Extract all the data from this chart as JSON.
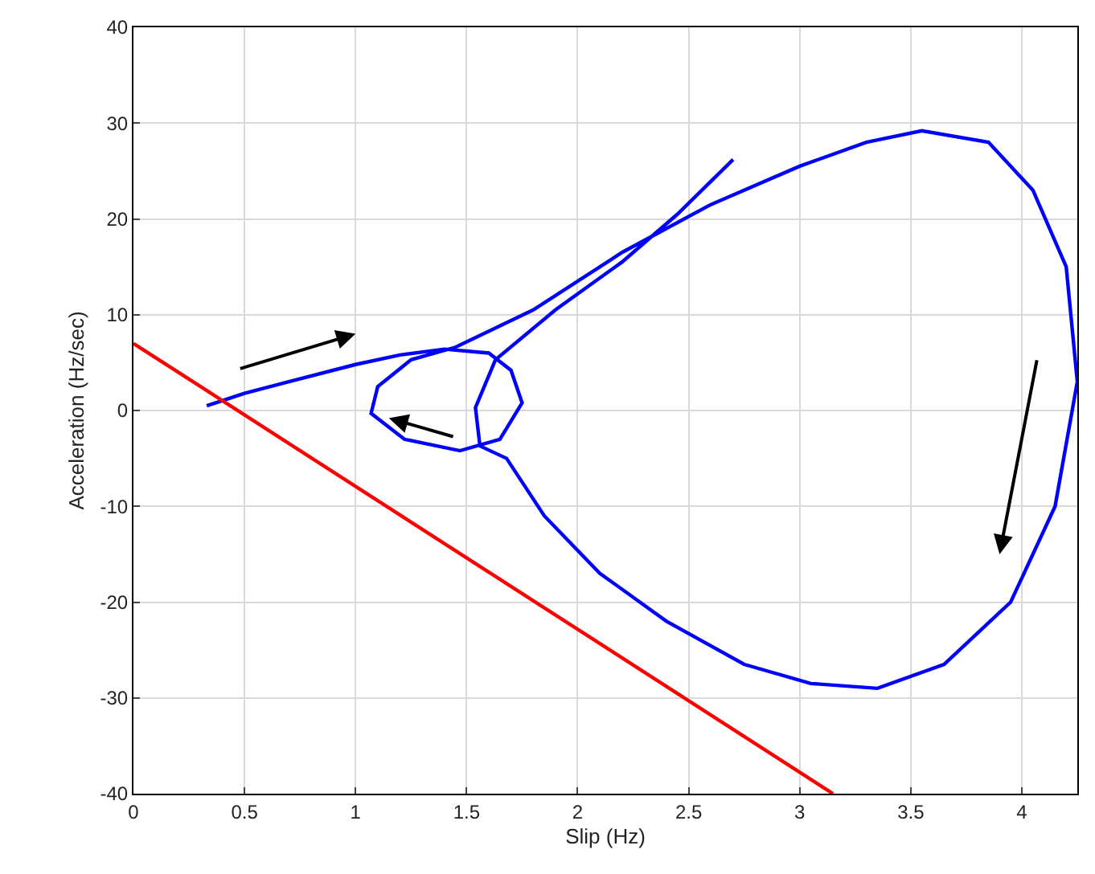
{
  "chart_data": {
    "type": "line",
    "xlabel": "Slip (Hz)",
    "ylabel": "Acceleration (Hz/sec)",
    "xlim": [
      0,
      4.25
    ],
    "ylim": [
      -40,
      40
    ],
    "xticks": [
      0,
      0.5,
      1,
      1.5,
      2,
      2.5,
      3,
      3.5,
      4
    ],
    "yticks": [
      -40,
      -30,
      -20,
      -10,
      0,
      10,
      20,
      30,
      40
    ],
    "grid": true,
    "marker": "none",
    "line_style": "solid",
    "series": [
      {
        "color": "#0000ff",
        "x": [
          0.33,
          0.5,
          0.7,
          1.0,
          1.2,
          1.4,
          1.6,
          1.7,
          1.75,
          1.65,
          1.47,
          1.22,
          1.07,
          1.1,
          1.25,
          1.45,
          1.8,
          2.2,
          2.6,
          3.0,
          3.3,
          3.55,
          3.85,
          4.05,
          4.2,
          4.25,
          4.15,
          3.95,
          3.65,
          3.35,
          3.05,
          2.75,
          2.4,
          2.1,
          1.85,
          1.68,
          1.56,
          1.54,
          1.63,
          1.9,
          2.2,
          2.45,
          2.7
        ],
        "values": [
          0.5,
          1.8,
          3.0,
          4.8,
          5.8,
          6.4,
          6.0,
          4.2,
          0.8,
          -3.0,
          -4.2,
          -3.0,
          -0.3,
          2.5,
          5.3,
          6.6,
          10.5,
          16.5,
          21.5,
          25.5,
          28.0,
          29.2,
          28.0,
          23.0,
          15.0,
          3.0,
          -10.0,
          -20.0,
          -26.5,
          -29.0,
          -28.5,
          -26.5,
          -22.0,
          -17.0,
          -11.0,
          -5.0,
          -3.7,
          0.3,
          5.3,
          10.5,
          15.5,
          20.5,
          26.2
        ]
      },
      {
        "color": "#ff0000",
        "x": [
          0,
          3.15
        ],
        "values": [
          7,
          -40
        ]
      }
    ]
  }
}
